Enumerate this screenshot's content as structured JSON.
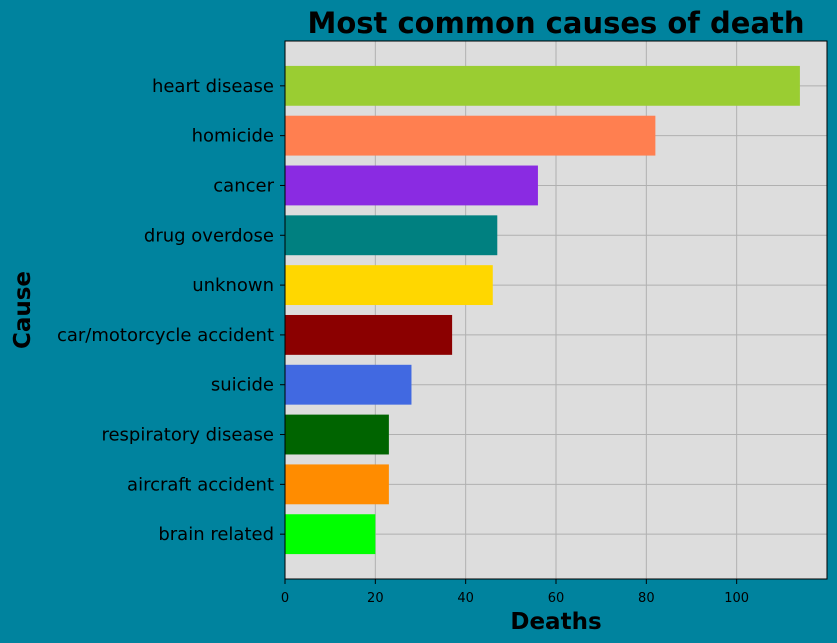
{
  "chart_data": {
    "type": "bar",
    "orientation": "horizontal",
    "title": "Most common causes of death",
    "xlabel": "Deaths",
    "ylabel": "Cause",
    "xlim": [
      0,
      120
    ],
    "xticks": [
      0,
      20,
      40,
      60,
      80,
      100
    ],
    "grid": true,
    "categories": [
      "heart disease",
      "homicide",
      "cancer",
      "drug overdose",
      "unknown",
      "car/motorcycle accident",
      "suicide",
      "respiratory disease",
      "aircraft accident",
      "brain related"
    ],
    "values": [
      114,
      82,
      56,
      47,
      46,
      37,
      28,
      23,
      23,
      20
    ],
    "colors": [
      "#9acd32",
      "#ff7f50",
      "#8a2be2",
      "#008080",
      "#ffd700",
      "#8b0000",
      "#4169e1",
      "#006400",
      "#ff8c00",
      "#00ff00"
    ],
    "style": {
      "background": "#00839e",
      "plot_background": "#dddddd",
      "grid_color": "#b0b0b0"
    }
  }
}
